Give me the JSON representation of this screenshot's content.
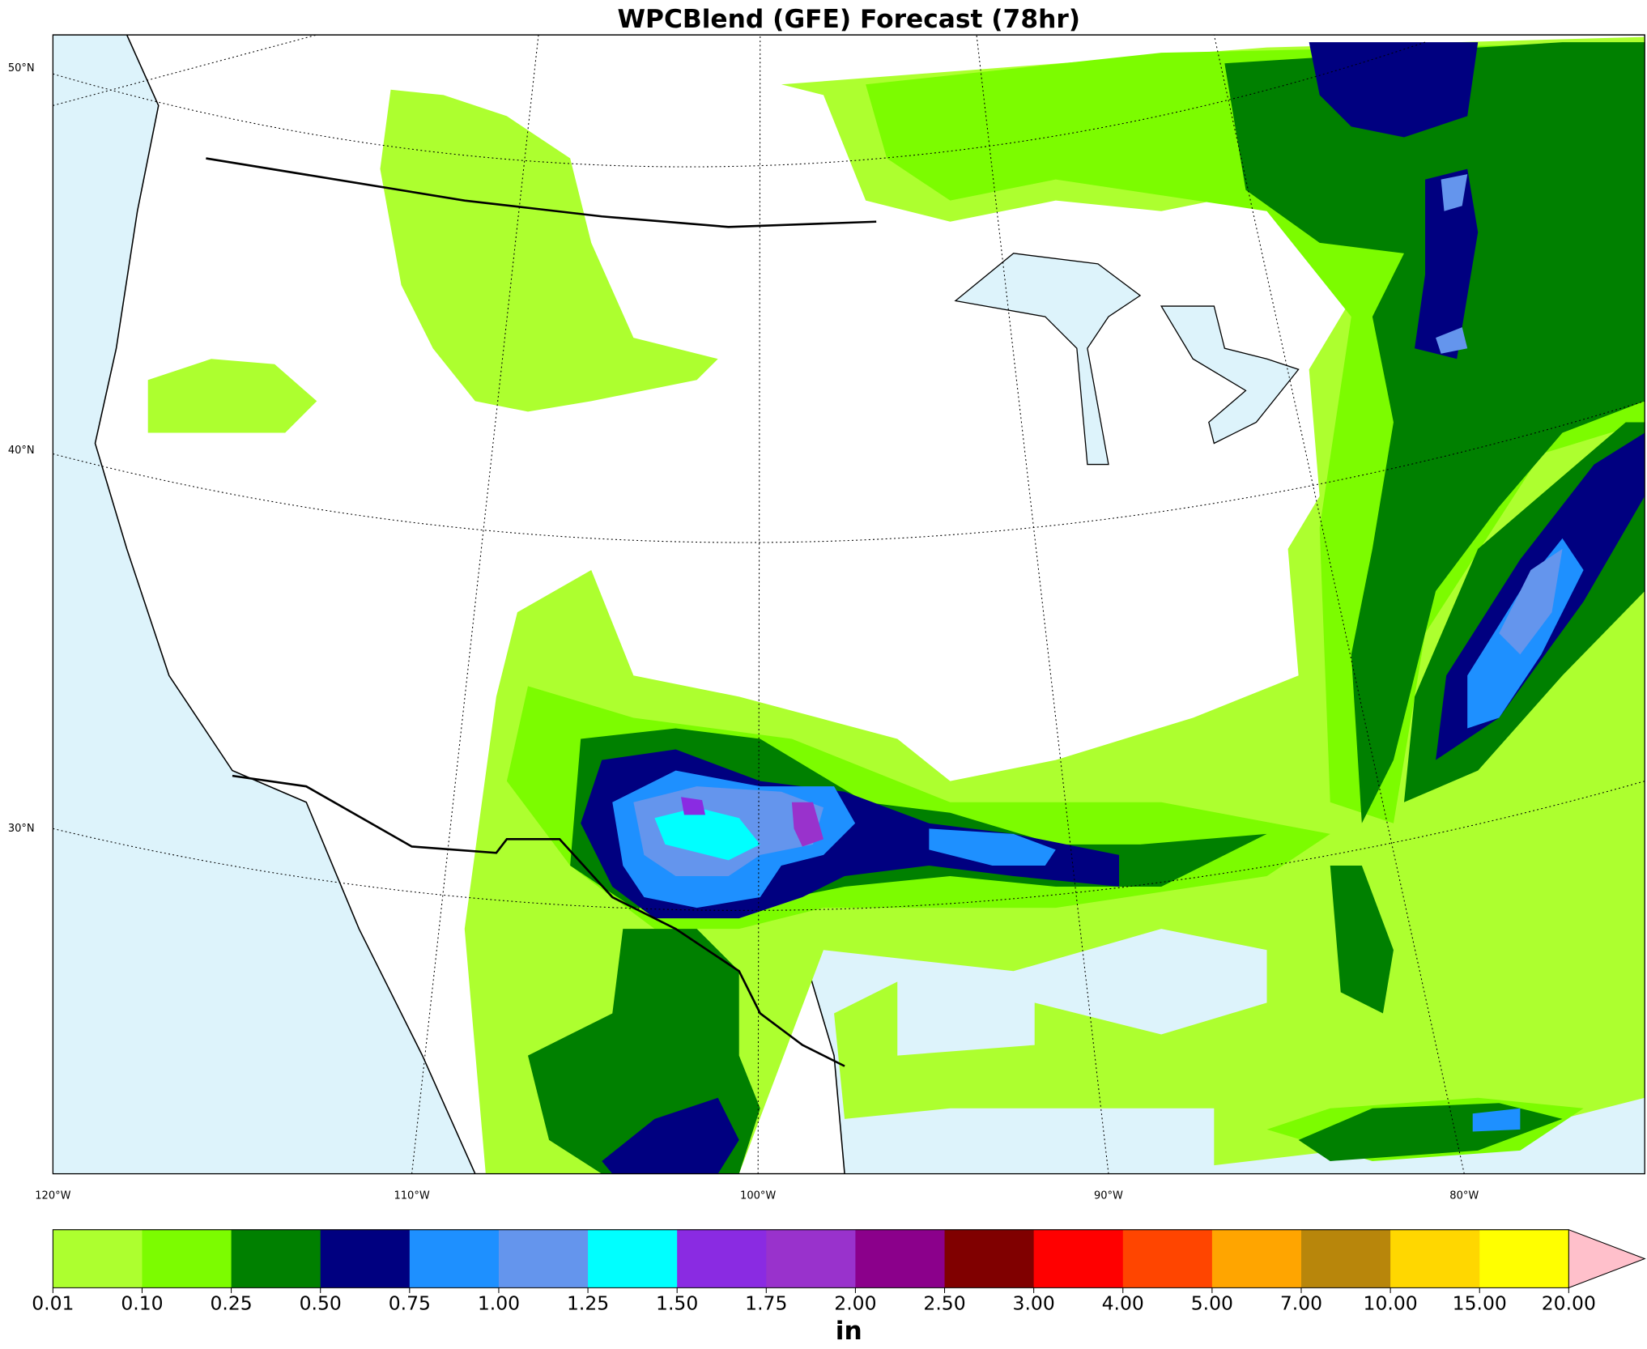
{
  "title": "WPCBlend (GFE) Forecast (78hr)",
  "map": {
    "lat_labels": [
      "50°N",
      "40°N",
      "30°N"
    ],
    "lon_labels": [
      "120°W",
      "110°W",
      "100°W",
      "90°W",
      "80°W"
    ]
  },
  "colorbar": {
    "levels": [
      "0.01",
      "0.10",
      "0.25",
      "0.50",
      "0.75",
      "1.00",
      "1.25",
      "1.50",
      "1.75",
      "2.00",
      "2.50",
      "3.00",
      "4.00",
      "5.00",
      "7.00",
      "10.00",
      "15.00",
      "20.00"
    ],
    "colors": [
      "#adff2f",
      "#7cfc00",
      "#008000",
      "#000080",
      "#1e90ff",
      "#6495ed",
      "#00ffff",
      "#8a2be2",
      "#9932cc",
      "#8b008b",
      "#800000",
      "#ff0000",
      "#ff4500",
      "#ffa500",
      "#b8860b",
      "#ffd700",
      "#ffff00"
    ],
    "extend_color": "#ffc0cb",
    "unit": "in"
  }
}
